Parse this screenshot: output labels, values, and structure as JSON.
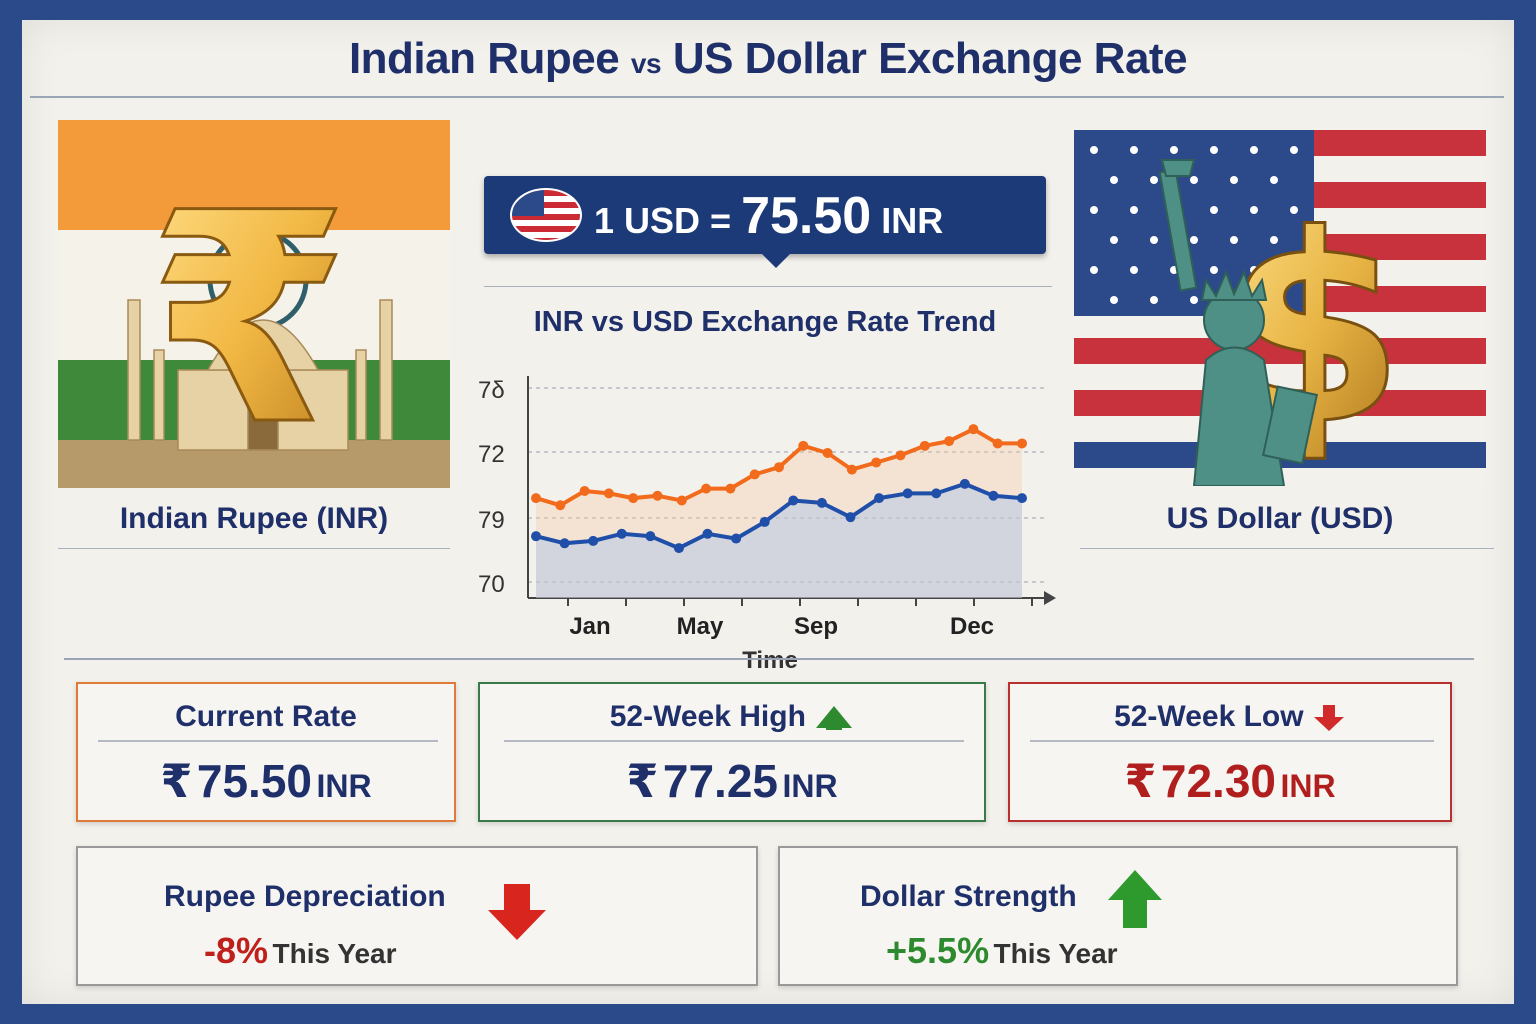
{
  "title": {
    "main_left": "Indian Rupee",
    "vs": "vs",
    "main_right": "US Dollar Exchange Rate"
  },
  "india": {
    "label": "Indian Rupee (INR)"
  },
  "usa": {
    "label": "US Dollar (USD)"
  },
  "badge": {
    "left": "1 USD =",
    "value": "75.50",
    "unit": "INR"
  },
  "colors": {
    "navy": "#1f2f6a",
    "orange": "#f26a1b",
    "blue": "#1f4fa8",
    "green": "#2e8a2e",
    "red": "#b01e1e"
  },
  "chart_data": {
    "type": "line",
    "title": "INR vs USD Exchange Rate Trend",
    "xlabel": "Time",
    "ylabel": "",
    "x_ticks": [
      "Jan",
      "May",
      "Sep",
      "Dec"
    ],
    "y_ticks": [
      "7δ",
      "72",
      "79",
      "70"
    ],
    "grid": true,
    "series": [
      {
        "color": "#f26a1b",
        "values": [
          74.2,
          73.9,
          74.5,
          74.4,
          74.2,
          74.3,
          74.1,
          74.6,
          74.6,
          75.2,
          75.5,
          76.4,
          76.1,
          75.4,
          75.7,
          76.0,
          76.4,
          76.6,
          77.1,
          76.5,
          76.5
        ]
      },
      {
        "color": "#1f4fa8",
        "values": [
          72.6,
          72.3,
          72.4,
          72.7,
          72.6,
          72.1,
          72.7,
          72.5,
          73.2,
          74.1,
          74.0,
          73.4,
          74.2,
          74.4,
          74.4,
          74.8,
          74.3,
          74.2
        ]
      }
    ]
  },
  "cards": {
    "current": {
      "head": "Current Rate",
      "symbol": "₹",
      "value": "75.50",
      "unit": "INR"
    },
    "high": {
      "head": "52-Week High",
      "symbol": "₹",
      "value": "77.25",
      "unit": "INR"
    },
    "low": {
      "head": "52-Week Low",
      "symbol": "₹",
      "value": "72.30",
      "unit": "INR"
    },
    "depreciation": {
      "head": "Rupee Depreciation",
      "value": "-8%",
      "suffix": "This Year"
    },
    "strength": {
      "head": "Dollar Strength",
      "value": "+5.5%",
      "suffix": "This Year"
    }
  }
}
